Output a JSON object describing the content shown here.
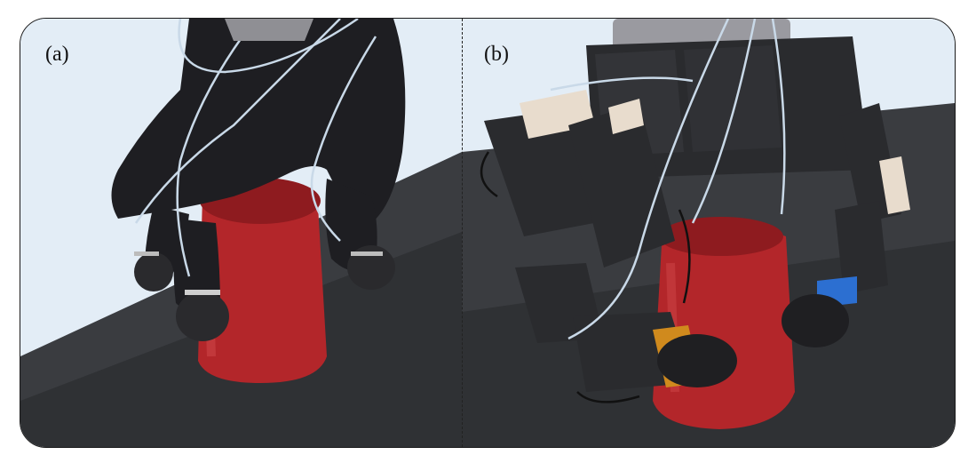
{
  "panels": [
    {
      "label": "(a)"
    },
    {
      "label": "(b)"
    }
  ],
  "colors": {
    "background_sky": "#e3edf6",
    "table_surface": "#3a3c40",
    "cup": "#b3262a",
    "glove": "#1e1e22",
    "robot_body": "#2a2b2e",
    "bracket": "#e8dccd",
    "cable": "#c9d9e8",
    "fingertip_tape": "#d08a1d",
    "fingertip_blue": "#2c6fd1"
  }
}
